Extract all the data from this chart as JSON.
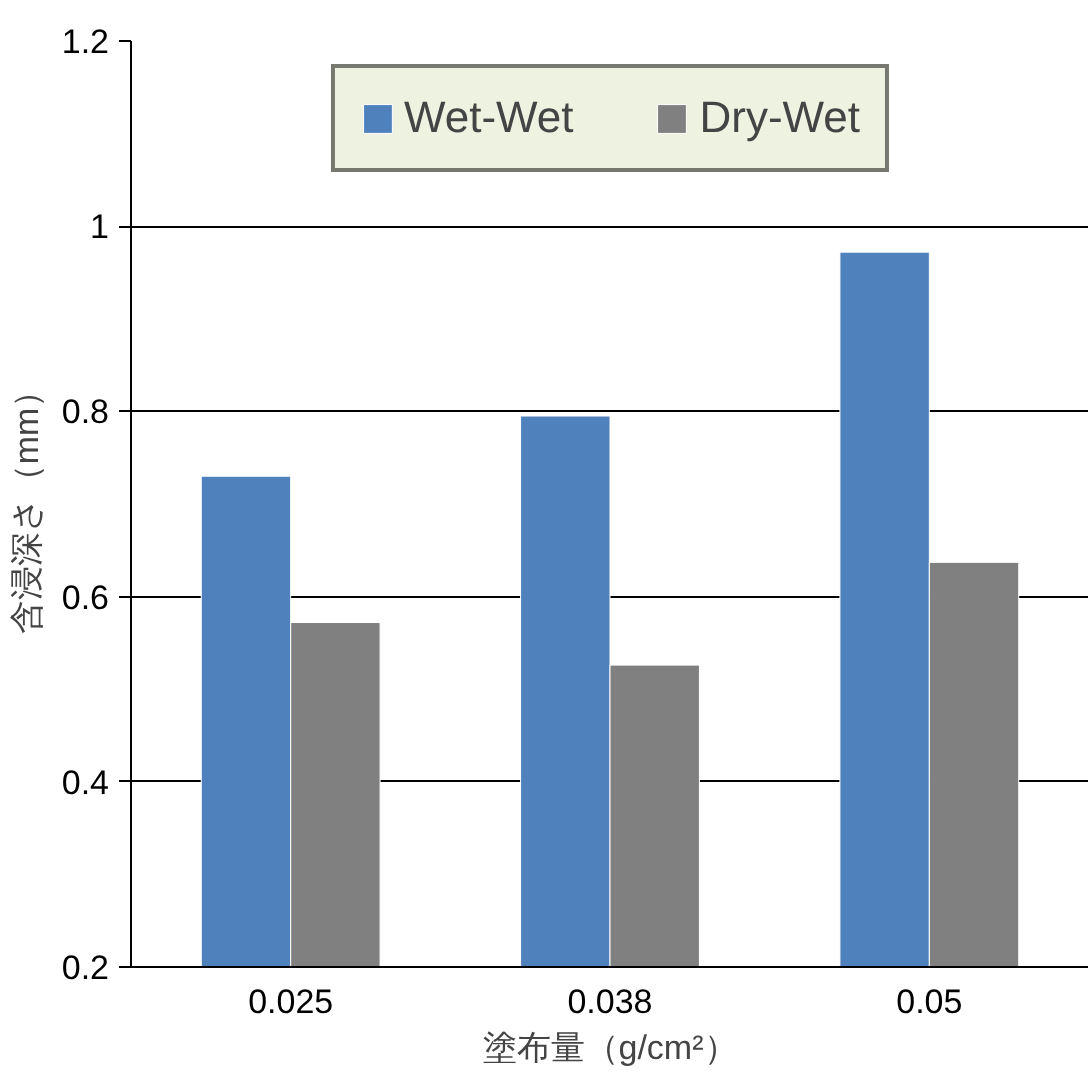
{
  "chart_data": {
    "type": "bar",
    "xlabel": "塗布量（g/cm²）",
    "ylabel": "含浸深さ（mm）",
    "categories": [
      "0.025",
      "0.038",
      "0.05"
    ],
    "series": [
      {
        "name": "Wet-Wet",
        "color": "#4f81bd",
        "values": [
          0.73,
          0.795,
          0.972
        ]
      },
      {
        "name": "Dry-Wet",
        "color": "#808080",
        "values": [
          0.572,
          0.526,
          0.637
        ]
      }
    ],
    "ylim": [
      0.2,
      1.2
    ],
    "yticks": [
      0.2,
      0.4,
      {
        "value": 0.6,
        "label": "0.6"
      },
      0.8,
      {
        "value": 1.0,
        "label": "1"
      },
      1.2
    ],
    "grid": "y",
    "legend": "top"
  }
}
